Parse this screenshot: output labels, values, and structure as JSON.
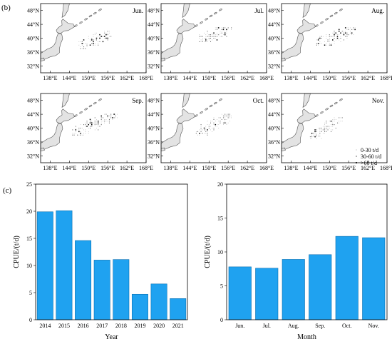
{
  "labels": {
    "panel_b": "(b)",
    "panel_c": "(c)"
  },
  "maps": {
    "lon_ticks": [
      "138°E",
      "144°E",
      "150°E",
      "156°E",
      "162°E",
      "168°E"
    ],
    "lat_ticks": [
      "48°N",
      "44°N",
      "40°N",
      "36°N",
      "32°N"
    ],
    "lon_range": [
      135,
      168
    ],
    "lat_range": [
      30,
      50
    ],
    "panels": [
      {
        "month": "Jun.",
        "grid_lon": [
          147,
          157
        ],
        "grid_lat": [
          37,
          42
        ],
        "density": 0.55
      },
      {
        "month": "Jul.",
        "grid_lon": [
          147,
          157
        ],
        "grid_lat": [
          39,
          43
        ],
        "density": 0.75
      },
      {
        "month": "Aug.",
        "grid_lon": [
          146,
          158
        ],
        "grid_lat": [
          38,
          43
        ],
        "density": 0.7
      },
      {
        "month": "Sep.",
        "grid_lon": [
          145,
          159
        ],
        "grid_lat": [
          38,
          44
        ],
        "density": 0.65
      },
      {
        "month": "Oct.",
        "grid_lon": [
          146,
          157
        ],
        "grid_lat": [
          38,
          44
        ],
        "density": 0.75
      },
      {
        "month": "Nov.",
        "grid_lon": [
          144,
          154
        ],
        "grid_lat": [
          37,
          43
        ],
        "density": 0.8
      }
    ],
    "legend": [
      "0-30 t/d",
      "30-60 t/d",
      ">60 t/d"
    ]
  },
  "chart_data": [
    {
      "type": "bar",
      "categories": [
        "2014",
        "2015",
        "2016",
        "2017",
        "2018",
        "2019",
        "2020",
        "2021"
      ],
      "values": [
        19.9,
        20.1,
        14.6,
        11.0,
        11.1,
        4.7,
        6.6,
        3.9
      ],
      "xlabel": "Year",
      "ylabel": "CPUE/(t/d)",
      "ylim": [
        0,
        25
      ],
      "yticks": [
        0,
        5,
        10,
        15,
        20,
        25
      ],
      "color": "#1fa2f0"
    },
    {
      "type": "bar",
      "categories": [
        "Jun.",
        "Jul.",
        "Aug.",
        "Sep.",
        "Oct.",
        "Nov."
      ],
      "values": [
        7.8,
        7.6,
        8.9,
        9.6,
        12.3,
        12.1
      ],
      "xlabel": "Month",
      "ylabel": "CPUE/(t/d)",
      "ylim": [
        0,
        20
      ],
      "yticks": [
        0,
        5,
        10,
        15,
        20
      ],
      "color": "#1fa2f0"
    }
  ]
}
